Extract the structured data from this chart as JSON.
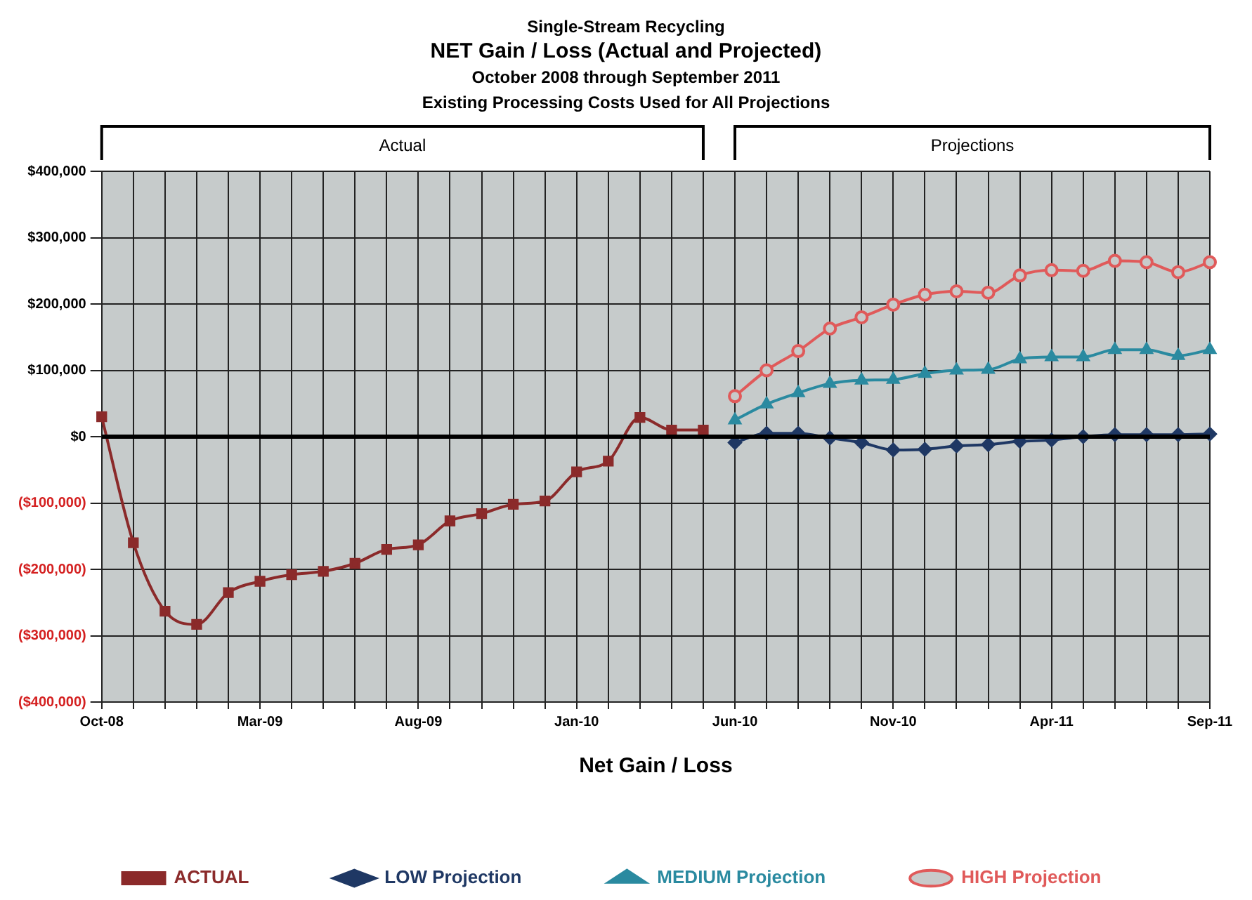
{
  "chart_data": {
    "type": "line",
    "title": "NET Gain / Loss (Actual and Projected)",
    "subtitle": "October 2008 through September 2011",
    "annotations": [
      "Single-Stream Recycling",
      "Existing Processing Costs Used for All Projections",
      "Actual",
      "Projections"
    ],
    "xlabel": "Net Gain / Loss",
    "categories": [
      "Oct-08",
      null,
      null,
      null,
      null,
      "Mar-09",
      null,
      null,
      null,
      null,
      "Aug-09",
      null,
      null,
      null,
      null,
      "Jan-10",
      null,
      null,
      null,
      null,
      "Jun-10",
      null,
      null,
      null,
      null,
      "Nov-10",
      null,
      null,
      null,
      null,
      "Apr-11",
      null,
      null,
      null,
      null,
      "Sep-11"
    ],
    "series": [
      {
        "name": "ACTUAL",
        "color": "#8b2a2a",
        "marker": "square",
        "values": [
          30000,
          -160000,
          -263000,
          -283000,
          -235000,
          -218000,
          -208000,
          -203000,
          -191000,
          -170000,
          -163000,
          -127000,
          -116000,
          -102000,
          -97000,
          -53000,
          -37000,
          29000,
          10000,
          10000,
          null,
          null,
          null,
          null,
          null,
          null,
          null,
          null,
          null,
          null,
          null,
          null,
          null,
          null,
          null,
          null
        ]
      },
      {
        "name": "LOW Projection",
        "color": "#1f3864",
        "marker": "diamond",
        "values": [
          null,
          null,
          null,
          null,
          null,
          null,
          null,
          null,
          null,
          null,
          null,
          null,
          null,
          null,
          null,
          null,
          null,
          null,
          null,
          null,
          -9000,
          5000,
          5000,
          -2000,
          -9000,
          -20000,
          -19000,
          -14000,
          -12000,
          -7000,
          -5000,
          0,
          3000,
          3000,
          3000,
          4000
        ]
      },
      {
        "name": "MEDIUM Projection",
        "color": "#2a8aa0",
        "marker": "triangle",
        "values": [
          null,
          null,
          null,
          null,
          null,
          null,
          null,
          null,
          null,
          null,
          null,
          null,
          null,
          null,
          null,
          null,
          null,
          null,
          null,
          null,
          25000,
          49000,
          66000,
          80000,
          85000,
          86000,
          95000,
          100000,
          101000,
          117000,
          120000,
          120000,
          131000,
          131000,
          122000,
          131000
        ]
      },
      {
        "name": "HIGH Projection",
        "color": "#e05a5a",
        "marker": "circle",
        "values": [
          null,
          null,
          null,
          null,
          null,
          null,
          null,
          null,
          null,
          null,
          null,
          null,
          null,
          null,
          null,
          null,
          null,
          null,
          null,
          null,
          61000,
          100000,
          129000,
          163000,
          180000,
          199000,
          214000,
          219000,
          217000,
          243000,
          251000,
          250000,
          265000,
          263000,
          248000,
          263000
        ]
      }
    ],
    "ylim": [
      -400000,
      400000
    ],
    "yticks": [
      {
        "value": -400000,
        "label": "($400,000)"
      },
      {
        "value": -300000,
        "label": "($300,000)"
      },
      {
        "value": -200000,
        "label": "($200,000)"
      },
      {
        "value": -100000,
        "label": "($100,000)"
      },
      {
        "value": 0,
        "label": "$0"
      },
      {
        "value": 100000,
        "label": "$100,000"
      },
      {
        "value": 200000,
        "label": "$200,000"
      },
      {
        "value": 300000,
        "label": "$300,000"
      },
      {
        "value": 400000,
        "label": "$400,000"
      }
    ],
    "ref_lines": [
      {
        "axis": "y",
        "value": 0,
        "color": "#000000"
      }
    ],
    "grid": true,
    "legend": "bottom",
    "line_style": "solid"
  }
}
